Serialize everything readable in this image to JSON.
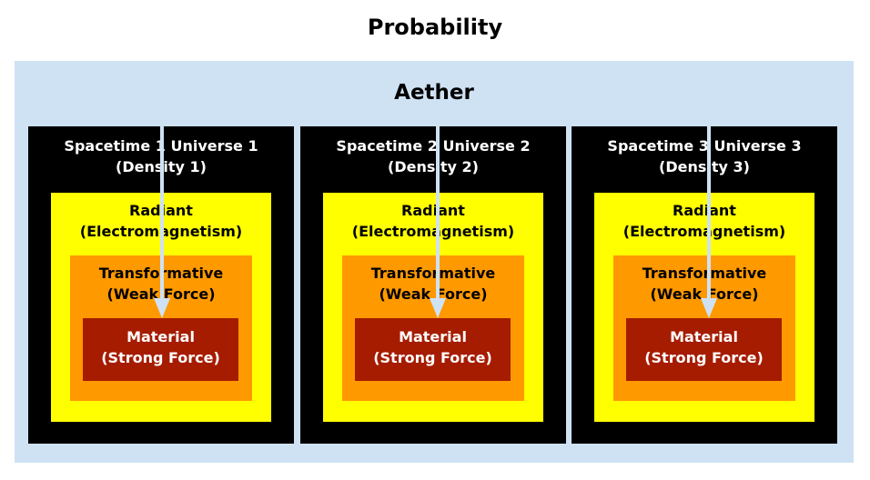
{
  "title": "Probability",
  "aether": {
    "label": "Aether"
  },
  "universes": [
    {
      "name": "Spacetime 1 Universe 1",
      "density": "(Density 1)",
      "radiant": {
        "name": "Radiant",
        "sub": "(Electromagnetism)"
      },
      "transformative": {
        "name": "Transformative",
        "sub": "(Weak Force)"
      },
      "material": {
        "name": "Material",
        "sub": "(Strong Force)"
      }
    },
    {
      "name": "Spacetime 2 Universe 2",
      "density": "(Density 2)",
      "radiant": {
        "name": "Radiant",
        "sub": "(Electromagnetism)"
      },
      "transformative": {
        "name": "Transformative",
        "sub": "(Weak Force)"
      },
      "material": {
        "name": "Material",
        "sub": "(Strong Force)"
      }
    },
    {
      "name": "Spacetime 3 Universe 3",
      "density": "(Density 3)",
      "radiant": {
        "name": "Radiant",
        "sub": "(Electromagnetism)"
      },
      "transformative": {
        "name": "Transformative",
        "sub": "(Weak Force)"
      },
      "material": {
        "name": "Material",
        "sub": "(Strong Force)"
      }
    }
  ],
  "colors": {
    "aether": "#cfe2f3",
    "spacetime": "#000000",
    "radiant": "#ffff00",
    "transformative": "#ff9900",
    "material": "#a61c00",
    "arrow": "#cfe2f3"
  }
}
